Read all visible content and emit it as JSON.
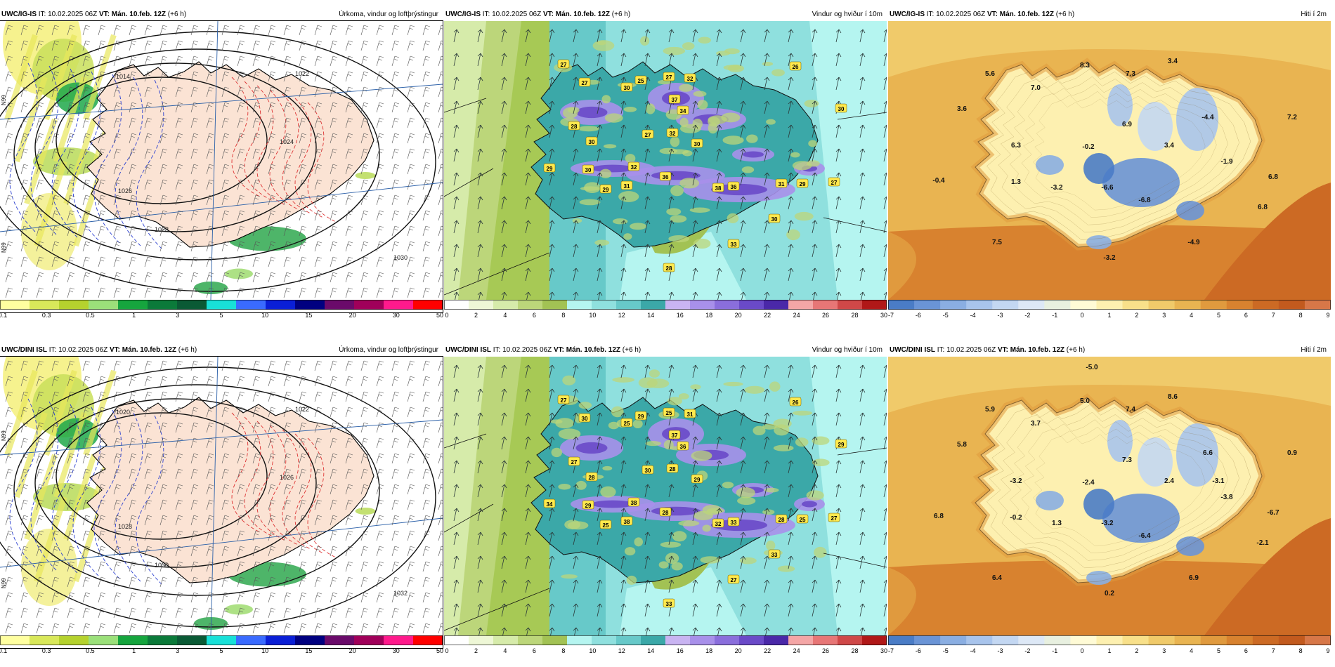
{
  "models": [
    {
      "name": "UWC/IG-IS",
      "issue": "10.02.2025 06Z",
      "valid": "Mán. 10.feb. 12Z",
      "lead": "(+6 h)"
    },
    {
      "name": "UWC/DINI ISL",
      "issue": "10.02.2025 06Z",
      "valid": "Mán. 10.feb. 12Z",
      "lead": "(+6 h)"
    }
  ],
  "labels": {
    "it_prefix": "IT:",
    "vt_prefix": "VT:"
  },
  "products": [
    {
      "id": "precip",
      "title": "Úrkoma, vindur og loftþrýstingur",
      "colors": [
        "#ffffa0",
        "#d9e85a",
        "#b5d22e",
        "#9be07a",
        "#16a53e",
        "#0b7a3a",
        "#0a5a35",
        "#18e0d8",
        "#3a6bff",
        "#0a1fd6",
        "#000080",
        "#6a0a6a",
        "#a0005a",
        "#ff1a8c",
        "#ff0000"
      ],
      "tick_labels": [
        "0.1",
        "0.3",
        "0.5",
        "1",
        "3",
        "5",
        "10",
        "15",
        "20",
        "30",
        "50"
      ]
    },
    {
      "id": "wind",
      "title": "Vindur og hviður í 10m",
      "colors": [
        "#ffffff",
        "#eef7d6",
        "#d6ebaa",
        "#bcd67a",
        "#a2c254",
        "#b5f5f0",
        "#8fe0de",
        "#67c9c9",
        "#3ba8a8",
        "#c9b4f2",
        "#a890ea",
        "#8a6edc",
        "#6a4ac8",
        "#4a28a8",
        "#f4a6a6",
        "#e77676",
        "#cf4848",
        "#b01818"
      ],
      "tick_labels": [
        "0",
        "2",
        "4",
        "6",
        "8",
        "10",
        "12",
        "14",
        "16",
        "18",
        "20",
        "22",
        "24",
        "26",
        "28",
        "30"
      ]
    },
    {
      "id": "temp",
      "title": "Hiti í 2m",
      "colors": [
        "#4a7cc6",
        "#6a94d6",
        "#8aaee2",
        "#a8c4ec",
        "#c3d7f2",
        "#dde8f6",
        "#e8f0e0",
        "#fffbd6",
        "#fdf0b0",
        "#f8e08a",
        "#f0ca6a",
        "#e9b451",
        "#e09a3e",
        "#d8822f",
        "#cc6a24",
        "#c25a1e",
        "#d77748"
      ],
      "tick_labels": [
        "-7",
        "-6",
        "-5",
        "-4",
        "-3",
        "-2",
        "-1",
        "0",
        "1",
        "2",
        "3",
        "4",
        "5",
        "6",
        "7",
        "8",
        "9"
      ]
    }
  ],
  "map_values": {
    "wind_top": [
      "27",
      "27",
      "30",
      "25",
      "27",
      "32",
      "37",
      "34",
      "32",
      "28",
      "30",
      "27",
      "30",
      "29",
      "30",
      "32",
      "31",
      "29",
      "36",
      "38",
      "36",
      "31",
      "29",
      "30",
      "33",
      "28",
      "26",
      "30",
      "27"
    ],
    "wind_bottom": [
      "27",
      "30",
      "25",
      "29",
      "25",
      "31",
      "37",
      "36",
      "28",
      "27",
      "28",
      "30",
      "29",
      "34",
      "29",
      "38",
      "38",
      "25",
      "28",
      "32",
      "33",
      "28",
      "25",
      "33",
      "27",
      "33",
      "26",
      "29",
      "27"
    ],
    "temp_top": [
      "5.6",
      "3.6",
      "7.0",
      "8.3",
      "7.3",
      "3.4",
      "-4.4",
      "7.2",
      "6.3",
      "6.9",
      "-0.2",
      "3.4",
      "-1.9",
      "-0.4",
      "1.3",
      "-3.2",
      "-6.6",
      "-6.8",
      "6.8",
      "6.8",
      "7.5",
      "-4.9",
      "-3.2"
    ],
    "temp_bottom": [
      "5.9",
      "5.8",
      "3.7",
      "5.0",
      "7.4",
      "8.6",
      "6.6",
      "0.9",
      "-3.2",
      "7.3",
      "-2.4",
      "2.4",
      "-3.8",
      "6.8",
      "-0.2",
      "1.3",
      "-3.2",
      "-6.4",
      "-6.7",
      "-2.1",
      "6.4",
      "6.9",
      "0.2",
      "-5.0",
      "-3.1"
    ],
    "precip_isobars_top": [
      "1014",
      "1022",
      "1024",
      "1026",
      "1028",
      "1030"
    ],
    "precip_isobars_bottom": [
      "1020",
      "1022",
      "1026",
      "1028",
      "1030",
      "1032"
    ],
    "precip_side": [
      "N99",
      "N99"
    ]
  }
}
